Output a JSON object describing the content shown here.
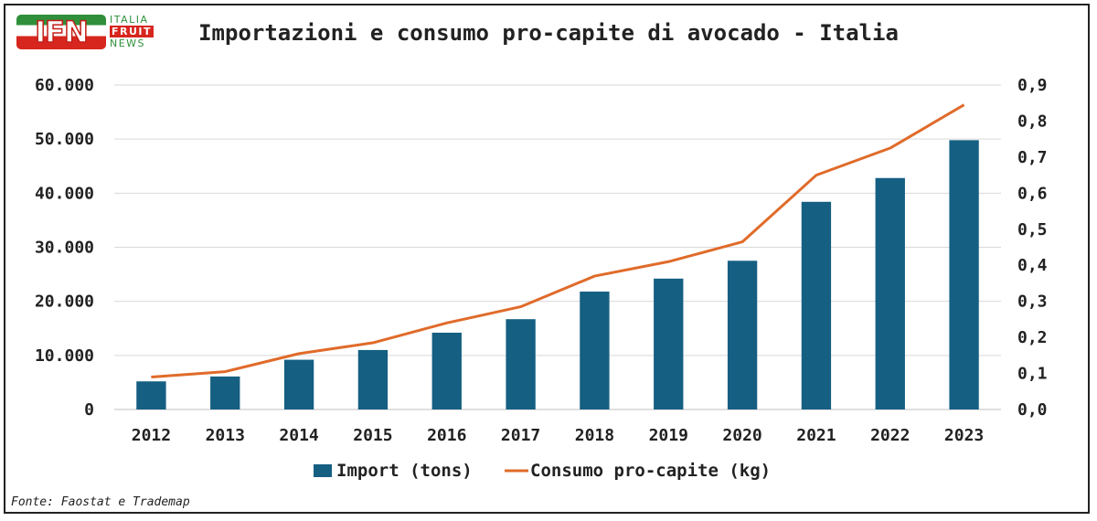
{
  "logo": {
    "main": "IFN",
    "word1": "ITALIA",
    "word2": "FRUIT",
    "word3": "NEWS"
  },
  "title": "Importazioni e consumo pro-capite di avocado - Italia",
  "source": "Fonte: Faostat e Trademap",
  "colors": {
    "bar": "#155f82",
    "line": "#e06b2a",
    "grid": "#d9d9d9"
  },
  "chart_data": {
    "type": "bar",
    "categories": [
      "2012",
      "2013",
      "2014",
      "2015",
      "2016",
      "2017",
      "2018",
      "2019",
      "2020",
      "2021",
      "2022",
      "2023"
    ],
    "series": [
      {
        "name": "Import (tons)",
        "type": "bar",
        "axis": "left",
        "values": [
          5200,
          6100,
          9200,
          11000,
          14200,
          16700,
          21800,
          24200,
          27500,
          38400,
          42800,
          49800
        ]
      },
      {
        "name": "Consumo pro-capite (kg)",
        "type": "line",
        "axis": "right",
        "values": [
          0.09,
          0.105,
          0.155,
          0.185,
          0.24,
          0.285,
          0.37,
          0.41,
          0.465,
          0.65,
          0.725,
          0.845
        ]
      }
    ],
    "y_left": {
      "min": 0,
      "max": 60000,
      "ticks": [
        0,
        10000,
        20000,
        30000,
        40000,
        50000,
        60000
      ],
      "tick_labels": [
        "0",
        "10.000",
        "20.000",
        "30.000",
        "40.000",
        "50.000",
        "60.000"
      ]
    },
    "y_right": {
      "min": 0,
      "max": 0.9,
      "ticks": [
        0,
        0.1,
        0.2,
        0.3,
        0.4,
        0.5,
        0.6,
        0.7,
        0.8,
        0.9
      ],
      "tick_labels": [
        "0,0",
        "0,1",
        "0,2",
        "0,3",
        "0,4",
        "0,5",
        "0,6",
        "0,7",
        "0,8",
        "0,9"
      ]
    },
    "grid": true,
    "legend": "bottom"
  }
}
